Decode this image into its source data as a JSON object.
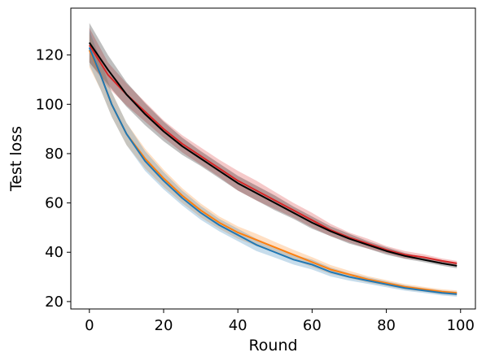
{
  "chart_data": {
    "type": "line",
    "xlabel": "Round",
    "ylabel": "Test loss",
    "xlim": [
      -5,
      104
    ],
    "ylim": [
      17,
      139
    ],
    "xticks": [
      0,
      20,
      40,
      60,
      80,
      100
    ],
    "yticks": [
      20,
      40,
      60,
      80,
      100,
      120
    ],
    "grid": false,
    "legend": "none",
    "series": [
      {
        "color": "#d62728",
        "x": [
          0,
          5,
          10,
          15,
          20,
          25,
          30,
          35,
          40,
          45,
          50,
          55,
          60,
          65,
          70,
          75,
          80,
          85,
          90,
          95,
          99
        ],
        "values": [
          124,
          112,
          104,
          97,
          90,
          84,
          79,
          74,
          69,
          65,
          61,
          57,
          53,
          49,
          46,
          43.5,
          41,
          39,
          38,
          36.5,
          35.5
        ],
        "band": [
          7,
          5,
          4.5,
          4,
          3.5,
          3.5,
          3.5,
          3.5,
          4,
          4,
          3.5,
          3,
          3,
          2.5,
          2,
          2,
          1.5,
          1.5,
          1.2,
          1,
          1
        ]
      },
      {
        "color": "#000000",
        "x": [
          0,
          5,
          10,
          15,
          20,
          25,
          30,
          35,
          40,
          45,
          50,
          55,
          60,
          65,
          70,
          75,
          80,
          85,
          90,
          95,
          99
        ],
        "values": [
          125,
          114,
          104,
          96,
          89,
          83,
          78,
          73,
          68,
          64,
          60,
          56,
          52,
          48.5,
          45.5,
          43,
          40.5,
          38.5,
          37,
          35.5,
          34.5
        ],
        "band": [
          8,
          6,
          5,
          4.5,
          4,
          3.5,
          3,
          3,
          3,
          3,
          3,
          2.5,
          2.5,
          2,
          2,
          1.5,
          1.5,
          1.2,
          1,
          1,
          1
        ]
      },
      {
        "color": "#ff7f0e",
        "x": [
          0,
          3,
          6,
          10,
          15,
          20,
          25,
          30,
          35,
          40,
          45,
          50,
          55,
          60,
          65,
          70,
          75,
          80,
          85,
          90,
          95,
          99
        ],
        "values": [
          122,
          112,
          100,
          88,
          78,
          70,
          63,
          57,
          52,
          48,
          45,
          42,
          39,
          36,
          33,
          31,
          29,
          27.5,
          26,
          25,
          24,
          23.5
        ],
        "band": [
          7,
          6,
          5,
          4.5,
          4,
          3.5,
          3,
          2.8,
          2.5,
          2.5,
          2.5,
          2.2,
          2,
          2,
          1.8,
          1.5,
          1.3,
          1.2,
          1.1,
          1,
          1,
          1
        ]
      },
      {
        "color": "#1f77b4",
        "x": [
          0,
          3,
          6,
          10,
          15,
          20,
          25,
          30,
          35,
          40,
          45,
          50,
          55,
          60,
          65,
          70,
          75,
          80,
          85,
          90,
          95,
          99
        ],
        "values": [
          123,
          112,
          100,
          88,
          77,
          69,
          62,
          56,
          51,
          47,
          43,
          40,
          37,
          35,
          32,
          30,
          28.5,
          27,
          25.5,
          24.5,
          23.5,
          23
        ],
        "band": [
          7,
          6,
          5,
          4.5,
          4,
          3.5,
          3,
          2.8,
          2.5,
          2.5,
          2.5,
          2.2,
          2,
          2,
          1.8,
          1.5,
          1.3,
          1.2,
          1.1,
          1,
          1,
          1
        ]
      }
    ]
  }
}
